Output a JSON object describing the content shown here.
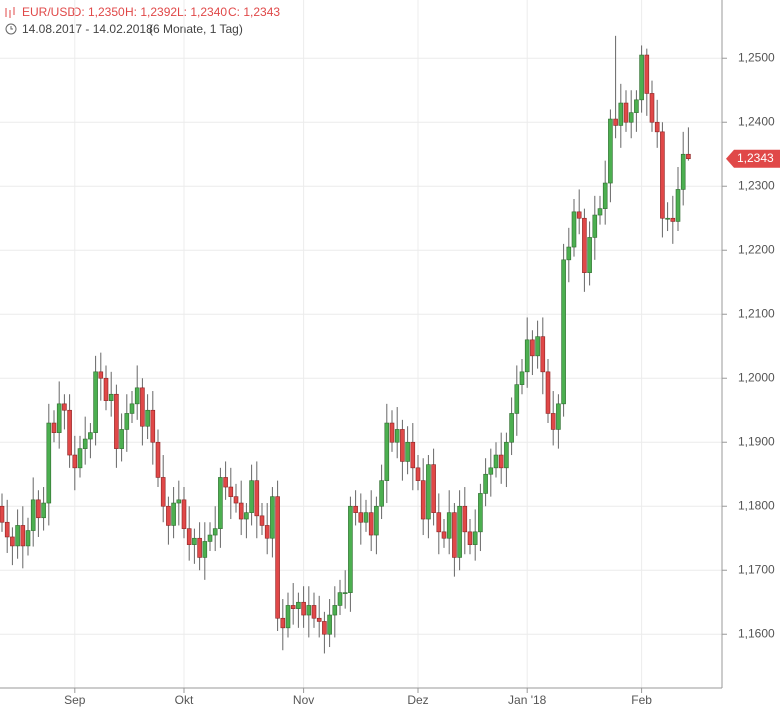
{
  "chart_data": {
    "type": "candlestick",
    "header": {
      "symbol": "EUR/USD",
      "ohlc": [
        "O: 1,2350",
        "H: 1,2392",
        "L: 1,2340",
        "C: 1,2343"
      ],
      "date_range": "14.08.2017 - 14.02.2018",
      "period": "(6 Monate, 1 Tag)"
    },
    "categories": [
      null,
      null,
      null,
      null,
      null,
      null,
      null,
      null,
      null,
      null,
      null,
      null,
      null,
      null,
      "Sep",
      null,
      null,
      null,
      null,
      null,
      null,
      null,
      null,
      null,
      null,
      null,
      null,
      null,
      null,
      null,
      null,
      null,
      null,
      null,
      null,
      "Okt",
      null,
      null,
      null,
      null,
      null,
      null,
      null,
      null,
      null,
      null,
      null,
      null,
      null,
      null,
      null,
      null,
      null,
      null,
      null,
      null,
      null,
      null,
      "Nov",
      null,
      null,
      null,
      null,
      null,
      null,
      null,
      null,
      null,
      null,
      null,
      null,
      null,
      null,
      null,
      null,
      null,
      null,
      null,
      null,
      null,
      "Dez",
      null,
      null,
      null,
      null,
      null,
      null,
      null,
      null,
      null,
      null,
      null,
      null,
      null,
      null,
      null,
      null,
      null,
      null,
      null,
      null,
      "Jan '18",
      null,
      null,
      null,
      null,
      null,
      null,
      null,
      null,
      null,
      null,
      null,
      null,
      null,
      null,
      null,
      null,
      null,
      null,
      null,
      null,
      null,
      "Feb",
      null,
      null,
      null,
      null,
      null,
      null,
      null,
      null,
      null
    ],
    "series": [
      {
        "name": "EUR/USD",
        "up_color": "#4caf50",
        "down_color": "#e04848",
        "open": [
          1.18,
          1.1775,
          1.1752,
          1.1738,
          1.177,
          1.1738,
          1.1762,
          1.181,
          1.1782,
          1.1805,
          1.193,
          1.1915,
          1.196,
          1.195,
          1.188,
          1.186,
          1.189,
          1.1905,
          1.1915,
          1.201,
          1.2,
          1.1965,
          1.1975,
          1.189,
          1.192,
          1.1945,
          1.196,
          1.1985,
          1.1925,
          1.195,
          1.19,
          1.1845,
          1.18,
          1.177,
          1.1805,
          1.181,
          1.1765,
          1.174,
          1.175,
          1.172,
          1.1745,
          1.1755,
          1.1765,
          1.1845,
          1.183,
          1.1815,
          1.1805,
          1.178,
          1.179,
          1.184,
          1.1785,
          1.177,
          1.175,
          1.1815,
          1.1625,
          1.161,
          1.1645,
          1.164,
          1.165,
          1.163,
          1.1645,
          1.1625,
          1.162,
          1.16,
          1.163,
          1.1645,
          1.1665,
          1.1665,
          1.18,
          1.179,
          1.1775,
          1.179,
          1.1755,
          1.18,
          1.184,
          1.193,
          1.19,
          1.192,
          1.187,
          1.19,
          1.186,
          1.184,
          1.178,
          1.1865,
          1.179,
          1.176,
          1.175,
          1.179,
          1.172,
          1.18,
          1.176,
          1.174,
          1.176,
          1.182,
          1.185,
          1.186,
          1.188,
          1.186,
          1.19,
          1.1945,
          1.199,
          1.201,
          1.206,
          1.2035,
          1.2065,
          1.201,
          1.1945,
          1.192,
          1.196,
          1.2185,
          1.2205,
          1.226,
          1.225,
          1.2165,
          1.222,
          1.2255,
          1.2265,
          1.2305,
          1.2405,
          1.2395,
          1.243,
          1.24,
          1.2415,
          1.2435,
          1.2505,
          1.2445,
          1.24,
          1.2385,
          1.225,
          1.225,
          1.2245,
          1.2295,
          1.235
        ],
        "high": [
          1.182,
          1.181,
          1.1767,
          1.1795,
          1.18,
          1.1782,
          1.1845,
          1.1825,
          1.183,
          1.196,
          1.195,
          1.1995,
          1.1975,
          1.1975,
          1.191,
          1.191,
          1.194,
          1.193,
          1.2035,
          1.204,
          1.202,
          1.201,
          1.199,
          1.1945,
          1.1975,
          1.198,
          1.202,
          1.2,
          1.1975,
          1.198,
          1.192,
          1.188,
          1.1815,
          1.183,
          1.184,
          1.183,
          1.18,
          1.1765,
          1.1775,
          1.1775,
          1.1775,
          1.18,
          1.186,
          1.187,
          1.186,
          1.1835,
          1.184,
          1.1805,
          1.1865,
          1.187,
          1.1805,
          1.1805,
          1.183,
          1.184,
          1.1655,
          1.1665,
          1.168,
          1.1665,
          1.1675,
          1.1675,
          1.1665,
          1.166,
          1.1635,
          1.1655,
          1.1675,
          1.1685,
          1.17,
          1.1815,
          1.1825,
          1.182,
          1.181,
          1.1825,
          1.1815,
          1.1865,
          1.196,
          1.195,
          1.1955,
          1.1935,
          1.1925,
          1.193,
          1.188,
          1.1875,
          1.188,
          1.189,
          1.182,
          1.178,
          1.1825,
          1.1805,
          1.1825,
          1.183,
          1.178,
          1.1795,
          1.1835,
          1.1875,
          1.189,
          1.19,
          1.1915,
          1.1915,
          1.197,
          1.202,
          1.203,
          1.2095,
          1.2075,
          1.209,
          1.2095,
          1.203,
          1.198,
          1.1975,
          1.221,
          1.2235,
          1.228,
          1.2295,
          1.2265,
          1.2245,
          1.2285,
          1.2285,
          1.234,
          1.242,
          1.2535,
          1.246,
          1.245,
          1.245,
          1.245,
          1.252,
          1.2515,
          1.2465,
          1.2435,
          1.24,
          1.2275,
          1.2285,
          1.233,
          1.2385,
          1.2392
        ],
        "low": [
          1.176,
          1.1727,
          1.1708,
          1.1718,
          1.1703,
          1.1723,
          1.1737,
          1.1752,
          1.1762,
          1.177,
          1.19,
          1.189,
          1.192,
          1.186,
          1.1825,
          1.1845,
          1.1865,
          1.1875,
          1.1895,
          1.1965,
          1.195,
          1.194,
          1.186,
          1.187,
          1.1885,
          1.193,
          1.1935,
          1.1895,
          1.1905,
          1.1865,
          1.183,
          1.1775,
          1.174,
          1.175,
          1.177,
          1.175,
          1.1715,
          1.171,
          1.17,
          1.1685,
          1.173,
          1.173,
          1.1735,
          1.181,
          1.178,
          1.179,
          1.1755,
          1.175,
          1.177,
          1.175,
          1.1755,
          1.1725,
          1.172,
          1.1605,
          1.1575,
          1.1595,
          1.1615,
          1.161,
          1.161,
          1.1595,
          1.161,
          1.1595,
          1.157,
          1.158,
          1.1595,
          1.163,
          1.164,
          1.1635,
          1.177,
          1.174,
          1.176,
          1.173,
          1.1725,
          1.178,
          1.1805,
          1.1885,
          1.1875,
          1.184,
          1.185,
          1.1825,
          1.1825,
          1.1755,
          1.175,
          1.177,
          1.1725,
          1.1735,
          1.1725,
          1.169,
          1.17,
          1.1725,
          1.1725,
          1.1715,
          1.173,
          1.18,
          1.1815,
          1.1845,
          1.1835,
          1.183,
          1.188,
          1.191,
          1.1975,
          1.1985,
          1.2005,
          1.2015,
          1.1975,
          1.193,
          1.1895,
          1.189,
          1.194,
          1.215,
          1.219,
          1.2225,
          1.2135,
          1.2145,
          1.2185,
          1.224,
          1.224,
          1.2275,
          1.2375,
          1.236,
          1.2385,
          1.2375,
          1.2385,
          1.2415,
          1.241,
          1.2385,
          1.236,
          1.222,
          1.223,
          1.221,
          1.223,
          1.227,
          1.234
        ],
        "close": [
          1.1775,
          1.1752,
          1.1738,
          1.177,
          1.1738,
          1.1762,
          1.181,
          1.1782,
          1.1805,
          1.193,
          1.1915,
          1.196,
          1.195,
          1.188,
          1.186,
          1.189,
          1.1905,
          1.1915,
          1.201,
          1.2,
          1.1965,
          1.1975,
          1.189,
          1.192,
          1.1945,
          1.196,
          1.1985,
          1.1925,
          1.195,
          1.19,
          1.1845,
          1.18,
          1.177,
          1.1805,
          1.181,
          1.1765,
          1.174,
          1.175,
          1.172,
          1.1745,
          1.1755,
          1.1765,
          1.1845,
          1.183,
          1.1815,
          1.1805,
          1.178,
          1.179,
          1.184,
          1.1785,
          1.177,
          1.175,
          1.1815,
          1.1625,
          1.161,
          1.1645,
          1.164,
          1.165,
          1.163,
          1.1645,
          1.1625,
          1.162,
          1.16,
          1.163,
          1.1645,
          1.1665,
          1.1665,
          1.18,
          1.179,
          1.1775,
          1.179,
          1.1755,
          1.18,
          1.184,
          1.193,
          1.19,
          1.192,
          1.187,
          1.19,
          1.186,
          1.184,
          1.178,
          1.1865,
          1.179,
          1.176,
          1.175,
          1.179,
          1.172,
          1.18,
          1.176,
          1.174,
          1.176,
          1.182,
          1.185,
          1.186,
          1.188,
          1.186,
          1.19,
          1.1945,
          1.199,
          1.201,
          1.206,
          1.2035,
          1.2065,
          1.201,
          1.1945,
          1.192,
          1.196,
          1.2185,
          1.2205,
          1.226,
          1.225,
          1.2165,
          1.222,
          1.2255,
          1.2265,
          1.2305,
          1.2405,
          1.2395,
          1.243,
          1.24,
          1.2415,
          1.2435,
          1.2505,
          1.2445,
          1.24,
          1.2385,
          1.225,
          1.225,
          1.2245,
          1.2295,
          1.235,
          1.2343
        ],
        "last_label": "1,2343"
      }
    ],
    "ylim": [
      1.1516,
      1.2591
    ],
    "yticks": [
      {
        "value": 1.16,
        "label": "1,1600"
      },
      {
        "value": 1.17,
        "label": "1,1700"
      },
      {
        "value": 1.18,
        "label": "1,1800"
      },
      {
        "value": 1.19,
        "label": "1,1900"
      },
      {
        "value": 1.2,
        "label": "1,2000"
      },
      {
        "value": 1.21,
        "label": "1,2100"
      },
      {
        "value": 1.22,
        "label": "1,2200"
      },
      {
        "value": 1.23,
        "label": "1,2300"
      },
      {
        "value": 1.24,
        "label": "1,2400"
      },
      {
        "value": 1.25,
        "label": "1,2500"
      }
    ],
    "grid": true
  }
}
